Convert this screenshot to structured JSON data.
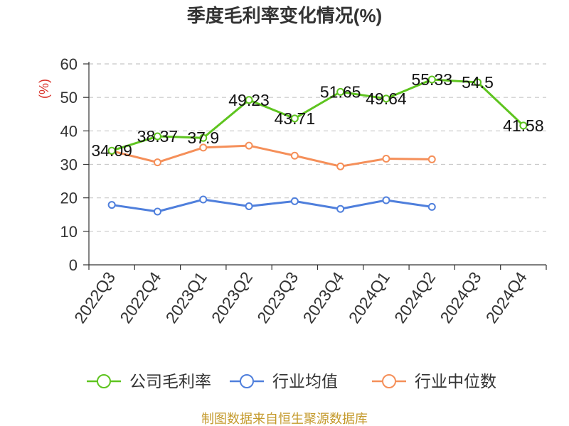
{
  "footer": "制图数据来自恒生聚源数据库",
  "footer_color": "#c49a2c",
  "chart_data": {
    "type": "line",
    "title": "季度毛利率变化情况(%)",
    "ylabel": "(%)",
    "ylabel_color": "#d9342b",
    "xlabel": "",
    "ylim": [
      0,
      60
    ],
    "yticks": [
      0,
      10,
      20,
      30,
      40,
      50,
      60
    ],
    "grid": true,
    "legend_position": "bottom",
    "categories": [
      "2022Q3",
      "2022Q4",
      "2023Q1",
      "2023Q2",
      "2023Q3",
      "2023Q4",
      "2024Q1",
      "2024Q2",
      "2024Q3",
      "2024Q4"
    ],
    "series": [
      {
        "name": "公司毛利率",
        "color": "#5ec41f",
        "show_labels": true,
        "values": [
          34.09,
          38.37,
          37.9,
          49.23,
          43.71,
          51.65,
          49.64,
          55.33,
          54.5,
          41.58
        ]
      },
      {
        "name": "行业均值",
        "color": "#4f7fdc",
        "show_labels": false,
        "values": [
          17.9,
          15.9,
          19.5,
          17.5,
          19.0,
          16.7,
          19.3,
          17.3,
          null,
          null
        ]
      },
      {
        "name": "行业中位数",
        "color": "#f58f59",
        "show_labels": false,
        "values": [
          34.0,
          30.6,
          35.0,
          35.6,
          32.6,
          29.4,
          31.7,
          31.5,
          null,
          null
        ]
      }
    ]
  }
}
